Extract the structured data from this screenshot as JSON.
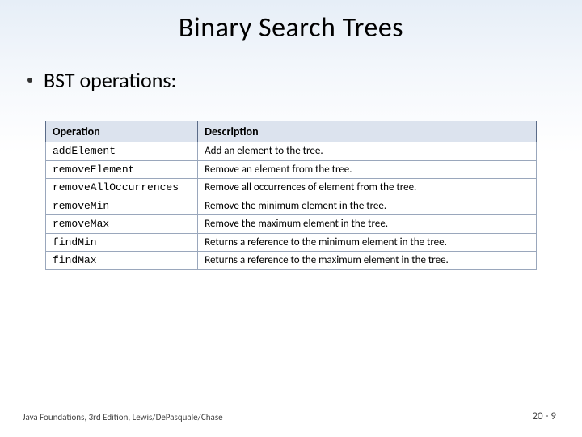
{
  "title": "Binary Search Trees",
  "bullet": "BST operations:",
  "table": {
    "headers": {
      "op": "Operation",
      "desc": "Description"
    },
    "rows": [
      {
        "op": "addElement",
        "desc": "Add an element to the tree."
      },
      {
        "op": "removeElement",
        "desc": "Remove an element from the tree."
      },
      {
        "op": "removeAllOccurrences",
        "desc": "Remove all occurrences of element from the tree."
      },
      {
        "op": "removeMin",
        "desc": "Remove the minimum element in the tree."
      },
      {
        "op": "removeMax",
        "desc": "Remove the maximum element in the tree."
      },
      {
        "op": "findMin",
        "desc": "Returns a reference to the minimum element in the tree."
      },
      {
        "op": "findMax",
        "desc": "Returns a reference to the maximum element in the tree."
      }
    ]
  },
  "footer": {
    "left": "Java Foundations, 3rd Edition, Lewis/DePasquale/Chase",
    "right": "20 - 9"
  }
}
